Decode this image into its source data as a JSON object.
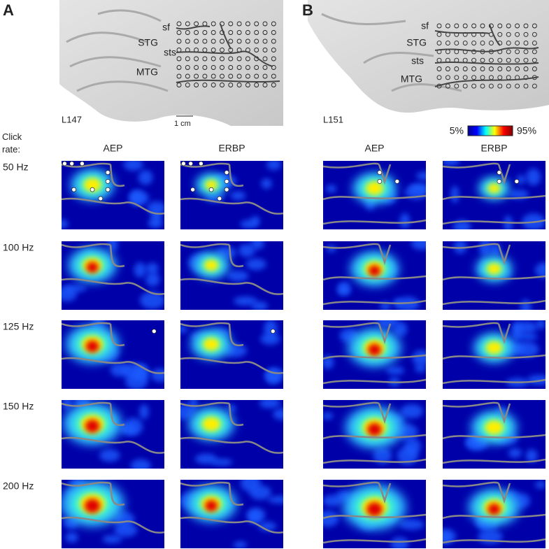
{
  "panels": [
    {
      "label": "A",
      "subject": "L147",
      "anatomy": [
        "sf",
        "STG",
        "sts",
        "MTG"
      ],
      "scale": "1 cm"
    },
    {
      "label": "B",
      "subject": "L151",
      "anatomy": [
        "sf",
        "STG",
        "sts",
        "MTG"
      ]
    }
  ],
  "colorbar": {
    "min_label": "5%",
    "max_label": "95%"
  },
  "row_title": "Click rate:",
  "rows": [
    "50 Hz",
    "100 Hz",
    "125 Hz",
    "150 Hz",
    "200 Hz"
  ],
  "columns": [
    "AEP",
    "ERBP",
    "AEP",
    "ERBP"
  ]
}
